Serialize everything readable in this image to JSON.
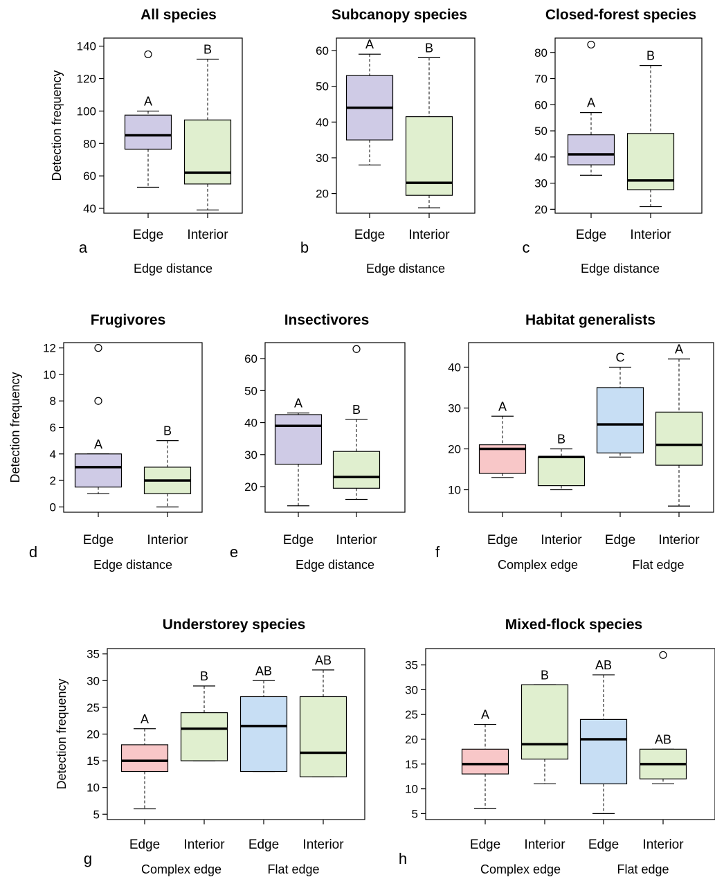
{
  "colors": {
    "edge": "#cfcbe6",
    "interior": "#e0efcf",
    "complex_edge": "#f8c7c8",
    "flat_edge": "#c7def4"
  },
  "chart_data": [
    {
      "type": "box",
      "panel": "a",
      "title": "All species",
      "ylabel": "Detection frequency",
      "xlabel": "Edge distance",
      "group_labels": [],
      "ylim": [
        37,
        145
      ],
      "yticks": [
        40,
        60,
        80,
        100,
        120,
        140
      ],
      "categories": [
        "Edge",
        "Interior"
      ],
      "boxes": [
        {
          "min": 53,
          "q1": 76.5,
          "median": 85,
          "q3": 97.5,
          "max": 100,
          "outliers": [
            135
          ],
          "letter": "A",
          "fill": "edge"
        },
        {
          "min": 39,
          "q1": 55,
          "median": 62,
          "q3": 94.5,
          "max": 132,
          "outliers": [],
          "letter": "B",
          "fill": "interior"
        }
      ]
    },
    {
      "type": "box",
      "panel": "b",
      "title": "Subcanopy species",
      "ylabel": "",
      "xlabel": "Edge distance",
      "group_labels": [],
      "ylim": [
        14.5,
        63.5
      ],
      "yticks": [
        20,
        30,
        40,
        50,
        60
      ],
      "categories": [
        "Edge",
        "Interior"
      ],
      "boxes": [
        {
          "min": 28,
          "q1": 35,
          "median": 44,
          "q3": 53,
          "max": 59,
          "outliers": [],
          "letter": "A",
          "fill": "edge"
        },
        {
          "min": 16,
          "q1": 19.5,
          "median": 23,
          "q3": 41.5,
          "max": 58,
          "outliers": [],
          "letter": "B",
          "fill": "interior"
        }
      ]
    },
    {
      "type": "box",
      "panel": "c",
      "title": "Closed-forest species",
      "ylabel": "",
      "xlabel": "Edge distance",
      "group_labels": [],
      "ylim": [
        18.5,
        85.5
      ],
      "yticks": [
        20,
        30,
        40,
        50,
        60,
        70,
        80
      ],
      "categories": [
        "Edge",
        "Interior"
      ],
      "boxes": [
        {
          "min": 33,
          "q1": 37,
          "median": 41,
          "q3": 48.5,
          "max": 57,
          "outliers": [
            83
          ],
          "letter": "A",
          "fill": "edge"
        },
        {
          "min": 21,
          "q1": 27.5,
          "median": 31,
          "q3": 49,
          "max": 75,
          "outliers": [],
          "letter": "B",
          "fill": "interior"
        }
      ]
    },
    {
      "type": "box",
      "panel": "d",
      "title": "Frugivores",
      "ylabel": "Detection frequency",
      "xlabel": "Edge distance",
      "group_labels": [],
      "ylim": [
        -0.4,
        12.4
      ],
      "yticks": [
        0,
        2,
        4,
        6,
        8,
        10,
        12
      ],
      "categories": [
        "Edge",
        "Interior"
      ],
      "boxes": [
        {
          "min": 1,
          "q1": 1.5,
          "median": 3,
          "q3": 4,
          "max": 4,
          "outliers": [
            8,
            12
          ],
          "letter": "A",
          "fill": "edge"
        },
        {
          "min": 0,
          "q1": 1,
          "median": 2,
          "q3": 3,
          "max": 5,
          "outliers": [],
          "letter": "B",
          "fill": "interior"
        }
      ]
    },
    {
      "type": "box",
      "panel": "e",
      "title": "Insectivores",
      "ylabel": "",
      "xlabel": "Edge distance",
      "group_labels": [],
      "ylim": [
        12,
        65
      ],
      "yticks": [
        20,
        30,
        40,
        50,
        60
      ],
      "categories": [
        "Edge",
        "Interior"
      ],
      "boxes": [
        {
          "min": 14,
          "q1": 27,
          "median": 39,
          "q3": 42.5,
          "max": 43,
          "outliers": [],
          "letter": "A",
          "fill": "edge"
        },
        {
          "min": 16,
          "q1": 19.5,
          "median": 23,
          "q3": 31,
          "max": 41,
          "outliers": [
            63
          ],
          "letter": "B",
          "fill": "interior"
        }
      ]
    },
    {
      "type": "box",
      "panel": "f",
      "title": "Habitat generalists",
      "ylabel": "",
      "xlabel": "",
      "group_labels": [
        "Complex edge",
        "Flat edge"
      ],
      "ylim": [
        4.5,
        46
      ],
      "yticks": [
        10,
        20,
        30,
        40
      ],
      "categories": [
        "Edge",
        "Interior",
        "Edge",
        "Interior"
      ],
      "boxes": [
        {
          "min": 13,
          "q1": 14,
          "median": 20,
          "q3": 21,
          "max": 28,
          "outliers": [],
          "letter": "A",
          "fill": "complex_edge"
        },
        {
          "min": 10,
          "q1": 11,
          "median": 18,
          "q3": 18,
          "max": 20,
          "outliers": [],
          "letter": "B",
          "fill": "interior"
        },
        {
          "min": 18,
          "q1": 19,
          "median": 26,
          "q3": 35,
          "max": 40,
          "outliers": [],
          "letter": "C",
          "fill": "flat_edge"
        },
        {
          "min": 6,
          "q1": 16,
          "median": 21,
          "q3": 29,
          "max": 42,
          "outliers": [],
          "letter": "A",
          "fill": "interior"
        }
      ]
    },
    {
      "type": "box",
      "panel": "g",
      "title": "Understorey species",
      "ylabel": "Detection frequency",
      "xlabel": "",
      "group_labels": [
        "Complex edge",
        "Flat edge"
      ],
      "ylim": [
        4,
        36
      ],
      "yticks": [
        5,
        10,
        15,
        20,
        25,
        30,
        35
      ],
      "categories": [
        "Edge",
        "Interior",
        "Edge",
        "Interior"
      ],
      "boxes": [
        {
          "min": 6,
          "q1": 13,
          "median": 15,
          "q3": 18,
          "max": 21,
          "outliers": [],
          "letter": "A",
          "fill": "complex_edge"
        },
        {
          "min": 15,
          "q1": 15,
          "median": 21,
          "q3": 24,
          "max": 29,
          "outliers": [],
          "letter": "B",
          "fill": "interior"
        },
        {
          "min": 13,
          "q1": 13,
          "median": 21.5,
          "q3": 27,
          "max": 30,
          "outliers": [],
          "letter": "AB",
          "fill": "flat_edge"
        },
        {
          "min": 12,
          "q1": 12,
          "median": 16.5,
          "q3": 27,
          "max": 32,
          "outliers": [],
          "letter": "AB",
          "fill": "interior"
        }
      ]
    },
    {
      "type": "box",
      "panel": "h",
      "title": "Mixed-flock species",
      "ylabel": "",
      "xlabel": "",
      "group_labels": [
        "Complex edge",
        "Flat edge"
      ],
      "ylim": [
        3.8,
        38.3
      ],
      "yticks": [
        5,
        10,
        15,
        20,
        25,
        30,
        35
      ],
      "categories": [
        "Edge",
        "Interior",
        "Edge",
        "Interior"
      ],
      "boxes": [
        {
          "min": 6,
          "q1": 13,
          "median": 15,
          "q3": 18,
          "max": 23,
          "outliers": [],
          "letter": "A",
          "fill": "complex_edge"
        },
        {
          "min": 11,
          "q1": 16,
          "median": 19,
          "q3": 31,
          "max": 31,
          "outliers": [],
          "letter": "B",
          "fill": "interior"
        },
        {
          "min": 5,
          "q1": 11,
          "median": 20,
          "q3": 24,
          "max": 33,
          "outliers": [],
          "letter": "AB",
          "fill": "flat_edge"
        },
        {
          "min": 11,
          "q1": 12,
          "median": 15,
          "q3": 18,
          "max": 18,
          "outliers": [
            37
          ],
          "letter": "AB",
          "fill": "interior"
        }
      ]
    }
  ]
}
